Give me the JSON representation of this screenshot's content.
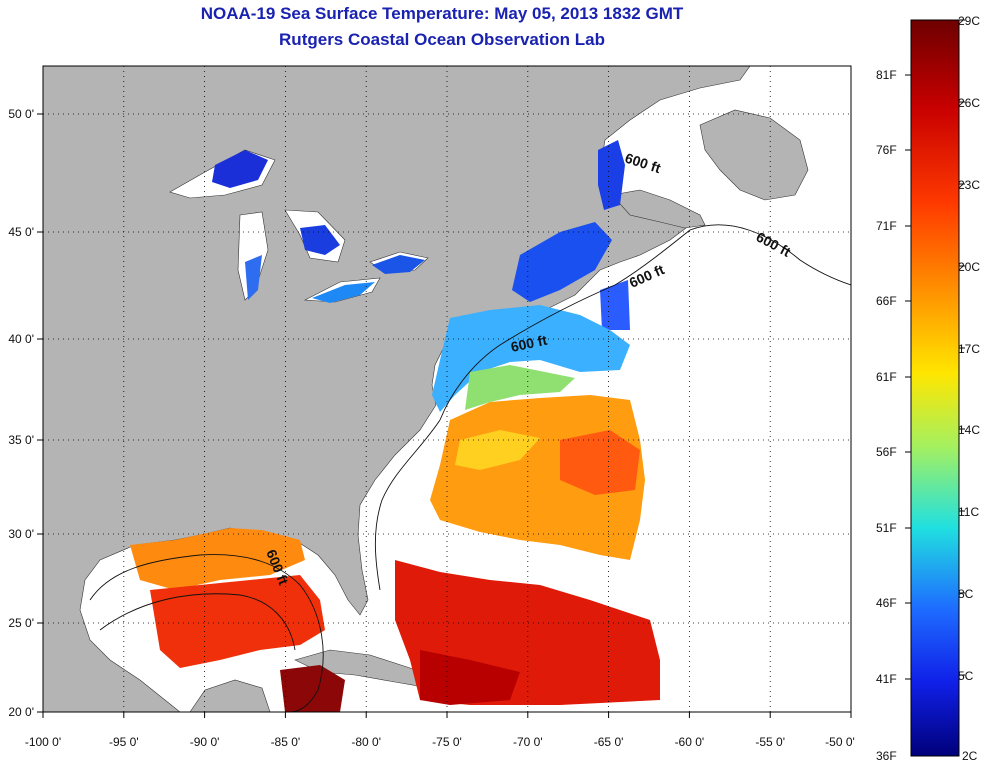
{
  "header": {
    "title": "NOAA-19 Sea Surface Temperature:  May 05, 2013 1832 GMT",
    "subtitle": "Rutgers Coastal Ocean Observation Lab"
  },
  "map": {
    "lon_range": [
      -100,
      -50
    ],
    "lat_range": [
      20,
      52.5
    ],
    "x_ticks": [
      "-100 0'",
      "-95 0'",
      "-90 0'",
      "-85 0'",
      "-80 0'",
      "-75 0'",
      "-70 0'",
      "-65 0'",
      "-60 0'",
      "-55 0'",
      "-50 0'"
    ],
    "y_ticks": [
      "20 0'",
      "25 0'",
      "30 0'",
      "35 0'",
      "40 0'",
      "45 0'",
      "50 0'"
    ],
    "annotations": [
      "600 ft",
      "600 ft",
      "600 ft",
      "600 ft",
      "600 ft"
    ],
    "land_color": "#b4b4b4",
    "ocean_color": "#ffffff"
  },
  "colorbar": {
    "fahrenheit": [
      "81F",
      "76F",
      "71F",
      "66F",
      "61F",
      "56F",
      "51F",
      "46F",
      "41F",
      "36F"
    ],
    "celsius": [
      "29C",
      "26C",
      "23C",
      "20C",
      "17C",
      "14C",
      "11C",
      "8C",
      "5C",
      "2C"
    ],
    "colors": [
      "#7a0000",
      "#d40000",
      "#ff3a00",
      "#ff9a00",
      "#ffe600",
      "#a4f060",
      "#20e0e0",
      "#1e6cff",
      "#1020e8",
      "#00007a"
    ]
  }
}
